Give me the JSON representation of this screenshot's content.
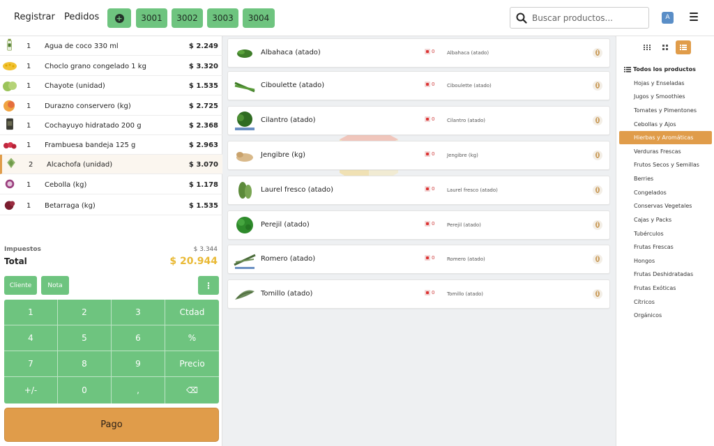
{
  "topbar": {
    "nav": [
      "Registrar",
      "Pedidos"
    ],
    "orders": [
      "3001",
      "3002",
      "3003",
      "3004"
    ],
    "search_placeholder": "Buscar productos...",
    "avatar_letter": "A"
  },
  "order": {
    "lines": [
      {
        "qty": "1",
        "name": "Agua de coco 330 ml",
        "price": "$ 2.249",
        "icon": "coconut-water-bottle"
      },
      {
        "qty": "1",
        "name": "Choclo grano congelado 1 kg",
        "price": "$ 3.320",
        "icon": "corn-kernels"
      },
      {
        "qty": "1",
        "name": "Chayote (unidad)",
        "price": "$ 1.535",
        "icon": "chayote"
      },
      {
        "qty": "1",
        "name": "Durazno conservero (kg)",
        "price": "$ 2.725",
        "icon": "peach"
      },
      {
        "qty": "1",
        "name": "Cochayuyo hidratado 200 g",
        "price": "$ 2.368",
        "icon": "cochayuyo-pack"
      },
      {
        "qty": "1",
        "name": "Frambuesa bandeja 125 g",
        "price": "$ 2.963",
        "icon": "raspberries"
      },
      {
        "qty": "2",
        "name": "Alcachofa (unidad)",
        "price": "$ 3.070",
        "icon": "artichoke",
        "selected": true
      },
      {
        "qty": "1",
        "name": "Cebolla (kg)",
        "price": "$ 1.178",
        "icon": "red-onion"
      },
      {
        "qty": "1",
        "name": "Betarraga (kg)",
        "price": "$ 1.535",
        "icon": "beetroot"
      }
    ],
    "tax_label": "Impuestos",
    "tax_value": "$ 3.344",
    "total_label": "Total",
    "total_value": "$ 20.944"
  },
  "actions": {
    "cliente": "Cliente",
    "nota": "Nota",
    "more": "⋮"
  },
  "numpad": {
    "keys": [
      "1",
      "2",
      "3",
      "Ctdad",
      "4",
      "5",
      "6",
      "%",
      "7",
      "8",
      "9",
      "Precio",
      "+/-",
      "0",
      ",",
      "⌫"
    ]
  },
  "pay_label": "Pago",
  "products": [
    {
      "name": "Albahaca (atado)",
      "stock": "0",
      "sub": "Albahaca (atado)"
    },
    {
      "name": "Ciboulette (atado)",
      "stock": "0",
      "sub": "Ciboulette (atado)"
    },
    {
      "name": "Cilantro (atado)",
      "stock": "0",
      "sub": "Cilantro (atado)"
    },
    {
      "name": "Jengibre (kg)",
      "stock": "0",
      "sub": "Jengibre (kg)"
    },
    {
      "name": "Laurel fresco (atado)",
      "stock": "0",
      "sub": "Laurel fresco (atado)"
    },
    {
      "name": "Perejil (atado)",
      "stock": "0",
      "sub": "Perejil (atado)"
    },
    {
      "name": "Romero (atado)",
      "stock": "0",
      "sub": "Romero (atado)"
    },
    {
      "name": "Tomillo (atado)",
      "stock": "0",
      "sub": "Tomillo (atado)"
    }
  ],
  "categories": {
    "all_label": "Todos los productos",
    "items": [
      "Hojas y Enseladas",
      "Jugos y Smoothies",
      "Tomates y Pimentones",
      "Cebollas y Ajos",
      "Hierbas y Aromáticas",
      "Verduras Frescas",
      "Frutos Secos y Semillas",
      "Berries",
      "Congelados",
      "Conservas Vegetales",
      "Cajas y Packs",
      "Tubérculos",
      "Frutas Frescas",
      "Hongos",
      "Frutas Deshidratadas",
      "Frutas Exóticas",
      "Cítricos",
      "Orgánicos"
    ],
    "active": "Hierbas y Aromáticas"
  },
  "colors": {
    "accent_green": "#6ec47f",
    "accent_orange": "#e09c4a",
    "total_yellow": "#e9b935"
  }
}
